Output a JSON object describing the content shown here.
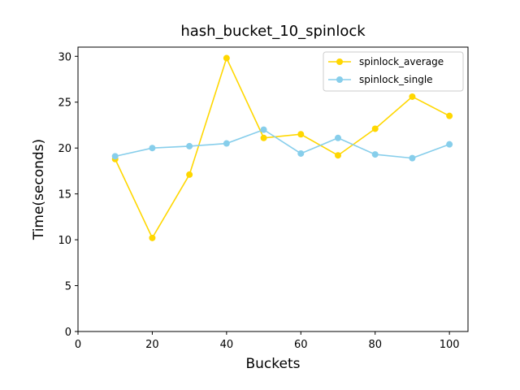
{
  "chart_data": {
    "type": "line",
    "title": "hash_bucket_10_spinlock",
    "xlabel": "Buckets",
    "ylabel": "Time(seconds)",
    "xlim": [
      0,
      105
    ],
    "ylim": [
      0,
      31
    ],
    "xticks": [
      0,
      20,
      40,
      60,
      80,
      100
    ],
    "yticks": [
      0,
      5,
      10,
      15,
      20,
      25,
      30
    ],
    "x": [
      10,
      20,
      30,
      40,
      50,
      60,
      70,
      80,
      90,
      100
    ],
    "grid": false,
    "legend_position": "upper right",
    "series": [
      {
        "name": "spinlock_average",
        "color": "#FFD700",
        "marker": "circle",
        "values": [
          18.8,
          10.2,
          17.1,
          29.8,
          21.1,
          21.5,
          19.2,
          22.1,
          25.6,
          23.5
        ]
      },
      {
        "name": "spinlock_single",
        "color": "#87CEEB",
        "marker": "circle",
        "values": [
          19.1,
          20.0,
          20.2,
          20.5,
          22.0,
          19.4,
          21.1,
          19.3,
          18.9,
          20.4
        ]
      }
    ]
  }
}
